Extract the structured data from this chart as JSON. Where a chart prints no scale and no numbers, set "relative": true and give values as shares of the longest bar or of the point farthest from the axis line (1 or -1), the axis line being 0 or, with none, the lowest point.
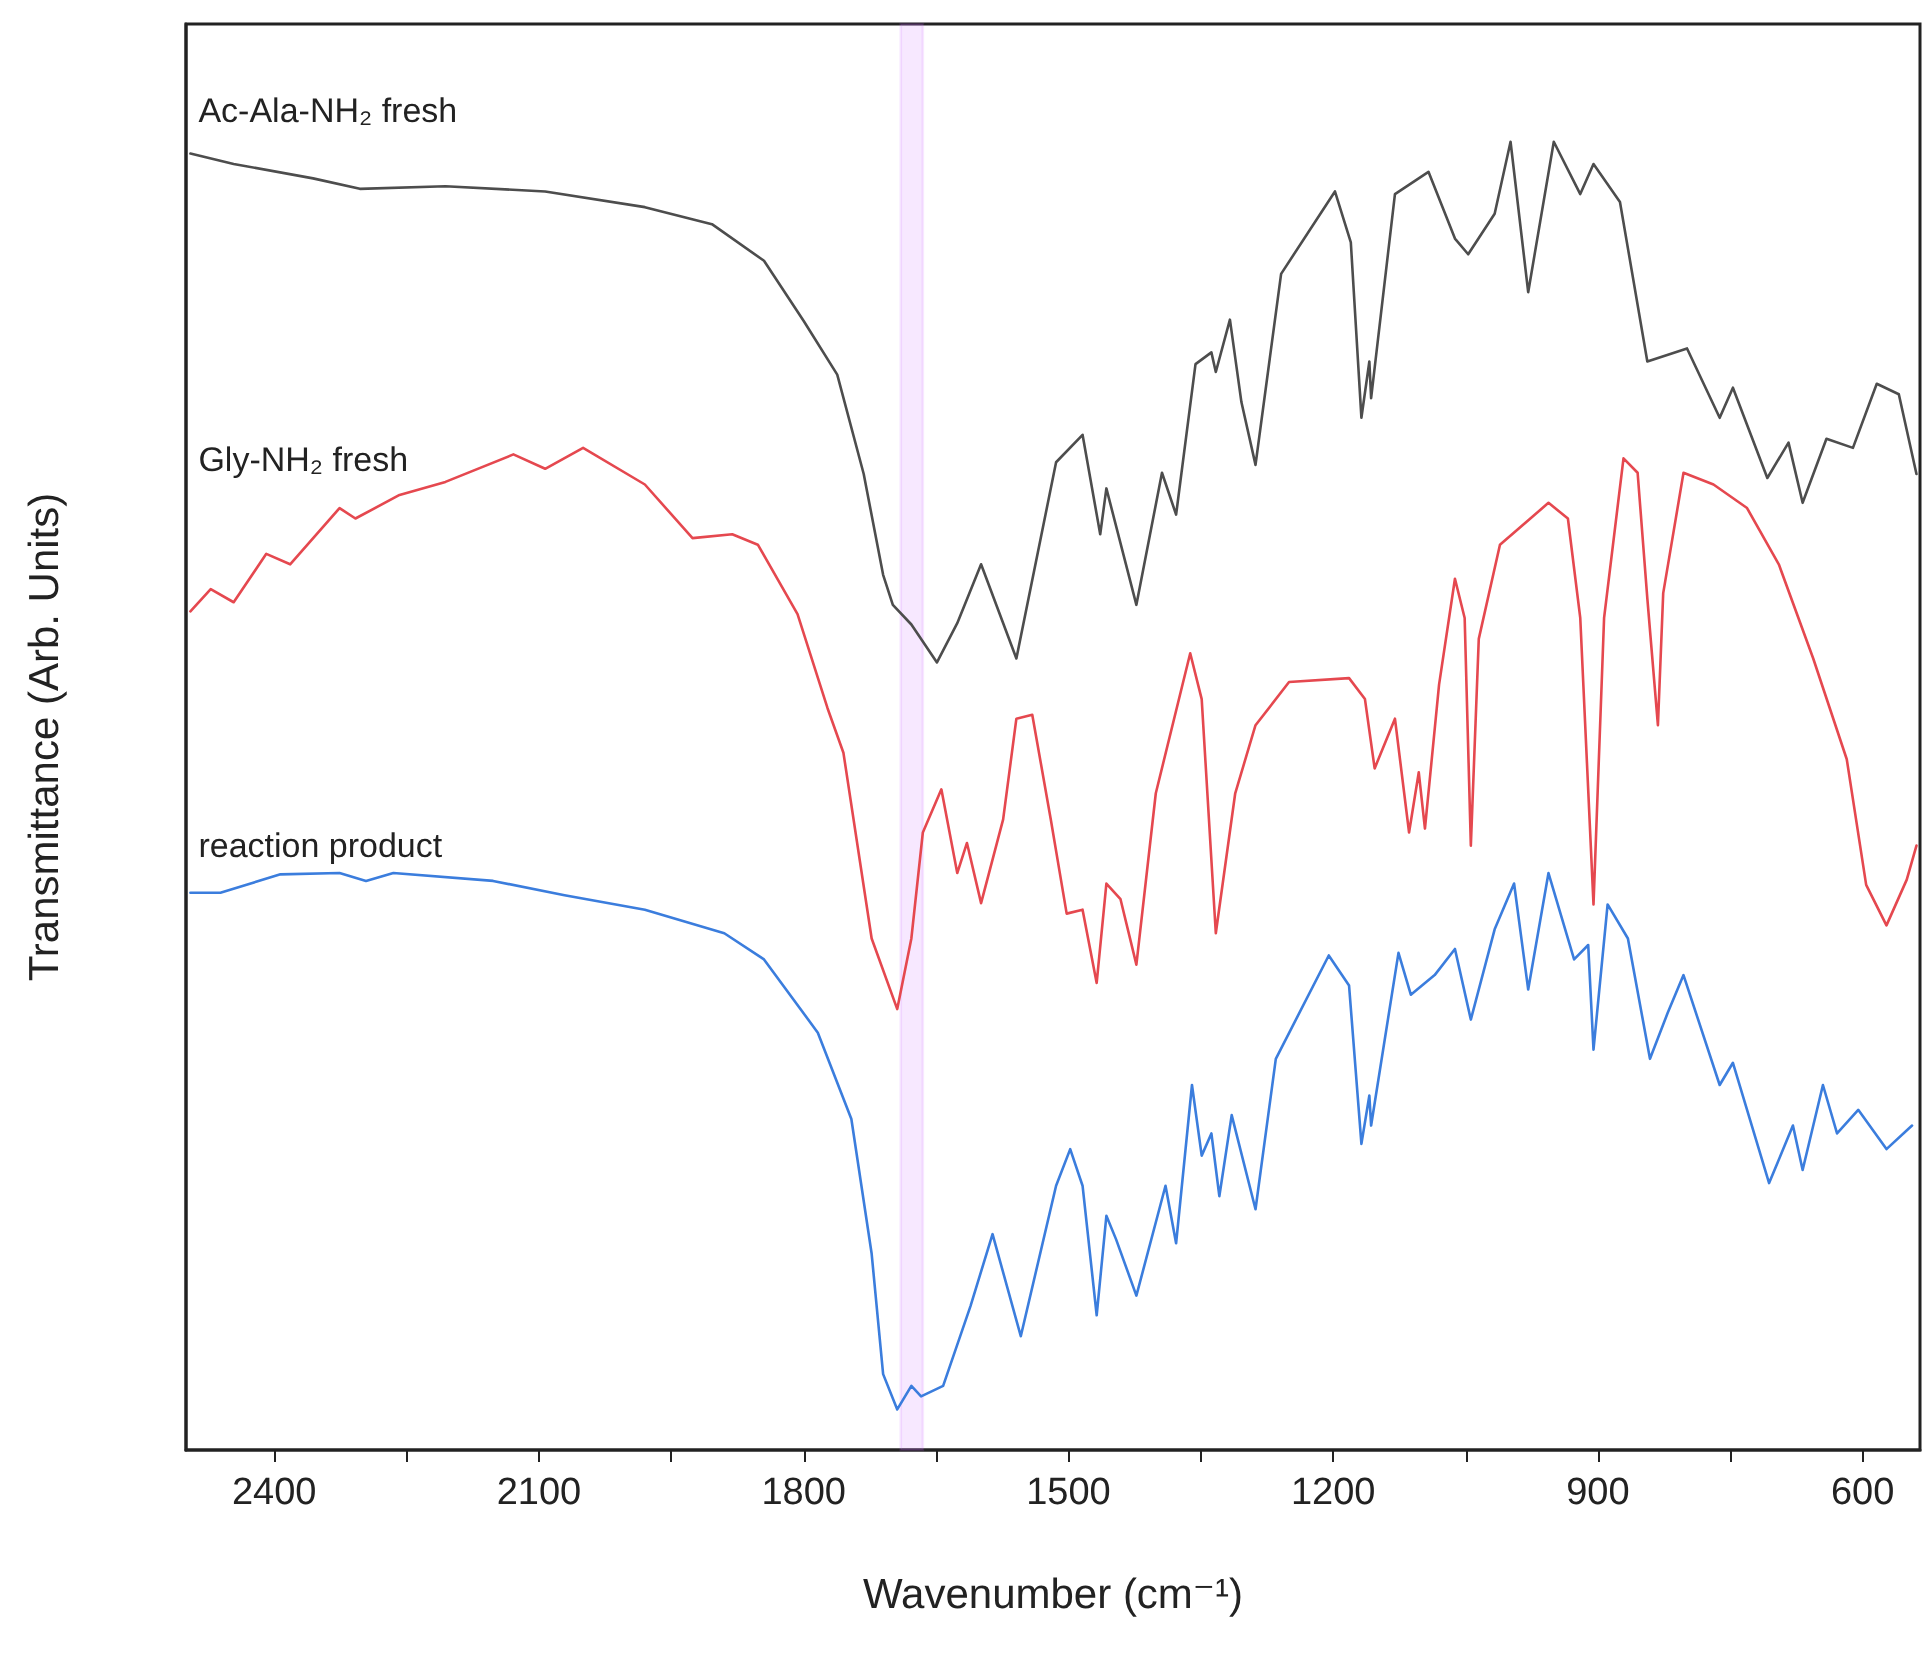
{
  "chart_data": {
    "type": "line",
    "relative": true,
    "xlabel": "Wavenumber (cm⁻¹)",
    "ylabel": "Transmittance (Arb. Units)",
    "xlim": [
      2500,
      535
    ],
    "xticks": [
      2400,
      {
        "value": 2250,
        "label": null
      },
      2100,
      {
        "value": 1950,
        "label": null
      },
      1800,
      {
        "value": 1650,
        "label": null
      },
      1500,
      {
        "value": 1350,
        "label": null
      },
      1200,
      {
        "value": 1050,
        "label": null
      },
      900,
      {
        "value": 750,
        "label": null
      },
      600
    ],
    "grid": false,
    "legend": false,
    "marker": "none",
    "line_style": "solid",
    "bands": [
      {
        "axis": "x",
        "from": 1690,
        "to": 1665,
        "color": "#cc66ff"
      }
    ],
    "series": [
      {
        "name": "Ac-Ala-NH₂ fresh",
        "color": "#4d4d4d",
        "x": [
          2495,
          2446,
          2356,
          2303,
          2206,
          2093,
          1980,
          1904,
          1845,
          1800,
          1762,
          1732,
          1710,
          1699,
          1678,
          1649,
          1626,
          1599,
          1559,
          1514,
          1484,
          1464,
          1457,
          1423,
          1394,
          1378,
          1356,
          1338,
          1333,
          1317,
          1304,
          1288,
          1259,
          1198,
          1180,
          1168,
          1159,
          1157,
          1130,
          1092,
          1062,
          1047,
          1017,
          999,
          979,
          950,
          920,
          905,
          875,
          844,
          799,
          762,
          747,
          708,
          684,
          668,
          641,
          611,
          584,
          559,
          539
        ],
        "values": [
          0.991,
          0.983,
          0.972,
          0.964,
          0.966,
          0.962,
          0.95,
          0.937,
          0.909,
          0.863,
          0.822,
          0.746,
          0.669,
          0.646,
          0.631,
          0.602,
          0.632,
          0.677,
          0.605,
          0.755,
          0.776,
          0.7,
          0.735,
          0.646,
          0.747,
          0.715,
          0.83,
          0.839,
          0.824,
          0.864,
          0.801,
          0.753,
          0.899,
          0.962,
          0.923,
          0.789,
          0.832,
          0.804,
          0.96,
          0.977,
          0.926,
          0.914,
          0.945,
          1,
          0.885,
          1,
          0.96,
          0.983,
          0.954,
          0.832,
          0.842,
          0.789,
          0.812,
          0.743,
          0.77,
          0.724,
          0.773,
          0.766,
          0.815,
          0.807,
          0.746
        ]
      },
      {
        "name": "Gly-NH₂ fresh",
        "color": "#e5484f",
        "x": [
          2495,
          2472,
          2446,
          2409,
          2382,
          2326,
          2308,
          2258,
          2206,
          2129,
          2093,
          2050,
          1980,
          1926,
          1881,
          1852,
          1807,
          1773,
          1755,
          1723,
          1694,
          1678,
          1665,
          1644,
          1626,
          1615,
          1599,
          1574,
          1559,
          1541,
          1520,
          1502,
          1484,
          1468,
          1457,
          1441,
          1423,
          1401,
          1362,
          1349,
          1333,
          1311,
          1288,
          1250,
          1182,
          1164,
          1153,
          1130,
          1114,
          1103,
          1096,
          1080,
          1062,
          1051,
          1044,
          1035,
          1011,
          956,
          934,
          920,
          905,
          893,
          871,
          855,
          844,
          832,
          826,
          803,
          769,
          731,
          695,
          656,
          618,
          596,
          573,
          550,
          539
        ],
        "values": [
          0.641,
          0.658,
          0.648,
          0.685,
          0.677,
          0.72,
          0.712,
          0.73,
          0.74,
          0.761,
          0.75,
          0.766,
          0.738,
          0.697,
          0.7,
          0.692,
          0.639,
          0.567,
          0.533,
          0.391,
          0.337,
          0.391,
          0.472,
          0.505,
          0.441,
          0.464,
          0.418,
          0.482,
          0.559,
          0.562,
          0.482,
          0.41,
          0.413,
          0.357,
          0.433,
          0.421,
          0.371,
          0.502,
          0.609,
          0.574,
          0.395,
          0.502,
          0.554,
          0.587,
          0.59,
          0.574,
          0.521,
          0.559,
          0.472,
          0.518,
          0.475,
          0.585,
          0.666,
          0.636,
          0.462,
          0.62,
          0.692,
          0.724,
          0.712,
          0.636,
          0.417,
          0.636,
          0.758,
          0.747,
          0.651,
          0.554,
          0.655,
          0.747,
          0.738,
          0.72,
          0.677,
          0.605,
          0.528,
          0.432,
          0.401,
          0.436,
          0.462
        ]
      },
      {
        "name": "reaction product",
        "color": "#3b7ddd",
        "x": [
          2495,
          2461,
          2393,
          2326,
          2296,
          2265,
          2152,
          2071,
          1980,
          1890,
          1845,
          1784,
          1746,
          1723,
          1710,
          1694,
          1678,
          1667,
          1642,
          1611,
          1586,
          1554,
          1514,
          1498,
          1484,
          1468,
          1457,
          1446,
          1423,
          1390,
          1378,
          1360,
          1349,
          1338,
          1329,
          1315,
          1288,
          1265,
          1205,
          1182,
          1168,
          1159,
          1157,
          1126,
          1112,
          1085,
          1062,
          1044,
          1017,
          995,
          979,
          956,
          927,
          911,
          905,
          889,
          866,
          841,
          821,
          803,
          762,
          747,
          706,
          679,
          668,
          645,
          629,
          605,
          573,
          544
        ],
        "values": [
          0.426,
          0.426,
          0.44,
          0.441,
          0.435,
          0.441,
          0.435,
          0.424,
          0.413,
          0.395,
          0.375,
          0.319,
          0.253,
          0.15,
          0.058,
          0.031,
          0.049,
          0.041,
          0.049,
          0.11,
          0.165,
          0.087,
          0.202,
          0.23,
          0.202,
          0.103,
          0.179,
          0.161,
          0.118,
          0.202,
          0.158,
          0.279,
          0.225,
          0.242,
          0.194,
          0.256,
          0.184,
          0.299,
          0.378,
          0.355,
          0.234,
          0.271,
          0.248,
          0.38,
          0.348,
          0.363,
          0.383,
          0.329,
          0.398,
          0.433,
          0.352,
          0.441,
          0.375,
          0.386,
          0.306,
          0.417,
          0.391,
          0.299,
          0.334,
          0.363,
          0.279,
          0.296,
          0.204,
          0.248,
          0.214,
          0.279,
          0.242,
          0.26,
          0.23,
          0.248
        ]
      }
    ]
  }
}
